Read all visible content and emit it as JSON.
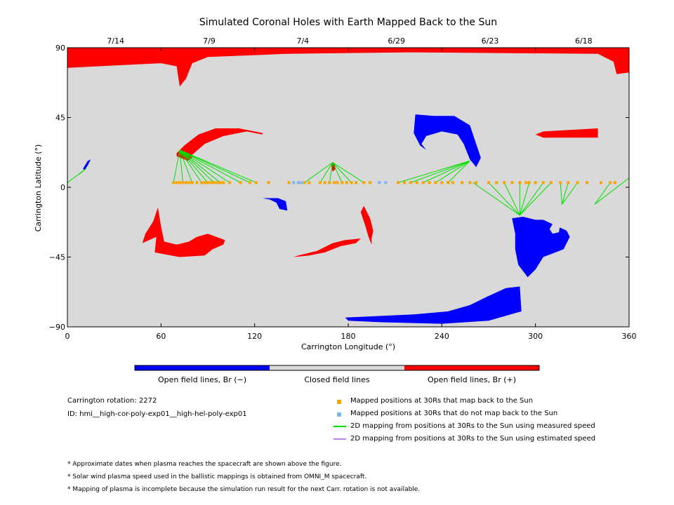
{
  "chart_data": {
    "type": "map",
    "title": "Simulated Coronal Holes with Earth Mapped Back to the Sun",
    "xlabel": "Carrington Longitude (°)",
    "ylabel": "Carrington Latitude (°)",
    "xlim": [
      0,
      360
    ],
    "ylim": [
      -90,
      90
    ],
    "x_ticks": [
      0,
      60,
      120,
      180,
      240,
      300,
      360
    ],
    "y_ticks": [
      -90,
      -45,
      0,
      45,
      90
    ],
    "x_tick_labels": [
      "0",
      "60",
      "120",
      "180",
      "240",
      "300",
      "360"
    ],
    "y_tick_labels": [
      "−90",
      "−45",
      "0",
      "45",
      "90"
    ],
    "top_axis_dates": [
      {
        "label": "7/14",
        "lon": 30
      },
      {
        "label": "7/9",
        "lon": 90
      },
      {
        "label": "7/4",
        "lon": 150
      },
      {
        "label": "6/29",
        "lon": 210
      },
      {
        "label": "6/23",
        "lon": 270
      },
      {
        "label": "6/18",
        "lon": 330
      }
    ],
    "colors": {
      "closed": "#d9d9d9",
      "open_negative": "#0000ff",
      "open_positive": "#ff0000",
      "mapped": "#f5a500",
      "unmapped": "#7ab8f5",
      "measured": "#00e000",
      "estimated": "#c080f0"
    },
    "coronal_holes": [
      {
        "polarity": "positive",
        "points": [
          [
            0,
            90
          ],
          [
            360,
            90
          ],
          [
            360,
            74
          ],
          [
            352,
            73
          ],
          [
            350,
            81
          ],
          [
            340,
            86
          ],
          [
            220,
            87
          ],
          [
            140,
            86
          ],
          [
            90,
            84
          ],
          [
            80,
            80
          ],
          [
            76,
            70
          ],
          [
            72,
            65
          ],
          [
            70,
            78
          ],
          [
            60,
            80
          ],
          [
            0,
            77
          ]
        ]
      },
      {
        "polarity": "positive",
        "points": [
          [
            70,
            22
          ],
          [
            75,
            27
          ],
          [
            84,
            34
          ],
          [
            95,
            38
          ],
          [
            110,
            38
          ],
          [
            125,
            35
          ],
          [
            125,
            34
          ],
          [
            115,
            36
          ],
          [
            100,
            33
          ],
          [
            88,
            28
          ],
          [
            80,
            21
          ],
          [
            75,
            18
          ],
          [
            70,
            20
          ]
        ]
      },
      {
        "polarity": "positive",
        "points": [
          [
            76,
            26
          ],
          [
            78,
            24
          ],
          [
            80,
            19
          ],
          [
            77,
            17
          ],
          [
            73,
            19
          ]
        ]
      },
      {
        "polarity": "positive",
        "points": [
          [
            305,
            36
          ],
          [
            340,
            38
          ],
          [
            340,
            32
          ],
          [
            305,
            32
          ],
          [
            300,
            34
          ]
        ]
      },
      {
        "polarity": "positive",
        "points": [
          [
            48,
            -36
          ],
          [
            57,
            -32
          ],
          [
            56,
            -42
          ],
          [
            72,
            -45
          ],
          [
            88,
            -44
          ],
          [
            93,
            -40
          ],
          [
            100,
            -37
          ],
          [
            101,
            -34
          ],
          [
            90,
            -30
          ],
          [
            83,
            -32
          ],
          [
            78,
            -35
          ],
          [
            70,
            -37
          ],
          [
            62,
            -35
          ],
          [
            60,
            -25
          ],
          [
            58,
            -13
          ],
          [
            55,
            -22
          ],
          [
            50,
            -30
          ]
        ]
      },
      {
        "polarity": "positive",
        "points": [
          [
            145,
            -45
          ],
          [
            155,
            -44
          ],
          [
            165,
            -42
          ],
          [
            175,
            -38
          ],
          [
            185,
            -36
          ],
          [
            188,
            -33
          ],
          [
            178,
            -34
          ],
          [
            170,
            -36
          ],
          [
            160,
            -41
          ],
          [
            148,
            -44
          ]
        ]
      },
      {
        "polarity": "positive",
        "points": [
          [
            195,
            -37
          ],
          [
            193,
            -32
          ],
          [
            191,
            -25
          ],
          [
            188,
            -16
          ],
          [
            190,
            -12
          ],
          [
            194,
            -20
          ],
          [
            196,
            -28
          ],
          [
            195,
            -33
          ]
        ]
      },
      {
        "polarity": "positive",
        "points": [
          [
            169,
            14
          ],
          [
            171,
            16
          ],
          [
            172,
            12
          ],
          [
            170,
            10
          ]
        ]
      },
      {
        "polarity": "negative",
        "points": [
          [
            223,
            47
          ],
          [
            235,
            46
          ],
          [
            248,
            46
          ],
          [
            258,
            40
          ],
          [
            262,
            28
          ],
          [
            265,
            19
          ],
          [
            262,
            13
          ],
          [
            258,
            18
          ],
          [
            254,
            28
          ],
          [
            250,
            34
          ],
          [
            240,
            36
          ],
          [
            230,
            33
          ],
          [
            227,
            28
          ],
          [
            230,
            24
          ],
          [
            226,
            27
          ],
          [
            222,
            35
          ]
        ]
      },
      {
        "polarity": "negative",
        "points": [
          [
            10,
            12
          ],
          [
            13,
            17
          ],
          [
            15,
            18
          ],
          [
            13,
            14
          ],
          [
            11,
            11
          ]
        ]
      },
      {
        "polarity": "negative",
        "points": [
          [
            125,
            -7
          ],
          [
            130,
            -8
          ],
          [
            134,
            -10
          ],
          [
            136,
            -14
          ],
          [
            141,
            -15
          ],
          [
            140,
            -9
          ],
          [
            135,
            -7
          ],
          [
            131,
            -7
          ]
        ]
      },
      {
        "polarity": "negative",
        "points": [
          [
            285,
            -20
          ],
          [
            292,
            -19
          ],
          [
            300,
            -21
          ],
          [
            305,
            -21
          ],
          [
            320,
            -28
          ],
          [
            322,
            -32
          ],
          [
            318,
            -40
          ],
          [
            305,
            -45
          ],
          [
            300,
            -53
          ],
          [
            295,
            -58
          ],
          [
            289,
            -50
          ],
          [
            287,
            -40
          ],
          [
            287,
            -30
          ]
        ]
      },
      {
        "polarity": "negative",
        "points": [
          [
            178,
            -84
          ],
          [
            200,
            -83
          ],
          [
            222,
            -82
          ],
          [
            244,
            -80
          ],
          [
            258,
            -76
          ],
          [
            268,
            -71
          ],
          [
            281,
            -65
          ],
          [
            290,
            -64
          ],
          [
            291,
            -80
          ],
          [
            270,
            -86
          ],
          [
            240,
            -88
          ],
          [
            200,
            -87
          ],
          [
            180,
            -86
          ]
        ]
      }
    ],
    "holes_closed": [
      {
        "points": [
          [
            309,
            -27
          ],
          [
            312,
            -22
          ],
          [
            316,
            -24
          ],
          [
            315,
            -29
          ],
          [
            311,
            -30
          ]
        ]
      }
    ],
    "mapped_points_lon": [
      68,
      70,
      72,
      74,
      76,
      78,
      80,
      83,
      86,
      88,
      90,
      92,
      94,
      96,
      98,
      100,
      104,
      111,
      117,
      121,
      129,
      142,
      148,
      152,
      155,
      162,
      165,
      168,
      171,
      173,
      176,
      179,
      182,
      185,
      190,
      194,
      212,
      216,
      220,
      224,
      228,
      232,
      236,
      240,
      244,
      247,
      253,
      258,
      262,
      270,
      275,
      280,
      285,
      290,
      294,
      296,
      300,
      305,
      310,
      316,
      321,
      327,
      333,
      342,
      348,
      351
    ],
    "unmapped_points_lon": [
      145,
      148,
      150,
      200,
      204
    ],
    "mapped_lat": 3,
    "measured_mappings": [
      {
        "from": [
          [
            68,
            3
          ],
          [
            74,
            3
          ],
          [
            80,
            3
          ],
          [
            86,
            3
          ],
          [
            90,
            3
          ],
          [
            94,
            3
          ],
          [
            98,
            3
          ],
          [
            104,
            3
          ],
          [
            111,
            3
          ],
          [
            117,
            3
          ],
          [
            121,
            3
          ]
        ],
        "to": [
          72,
          24
        ]
      },
      {
        "from": [
          [
            152,
            3
          ],
          [
            162,
            3
          ],
          [
            168,
            3
          ],
          [
            176,
            3
          ],
          [
            182,
            3
          ],
          [
            190,
            3
          ]
        ],
        "to": [
          170,
          16
        ]
      },
      {
        "from": [
          [
            212,
            3
          ],
          [
            220,
            3
          ],
          [
            228,
            3
          ],
          [
            236,
            3
          ],
          [
            244,
            3
          ]
        ],
        "to": [
          258,
          17
        ]
      },
      {
        "from": [
          [
            260,
            3
          ],
          [
            270,
            3
          ],
          [
            280,
            3
          ],
          [
            290,
            3
          ],
          [
            296,
            3
          ],
          [
            305,
            3
          ],
          [
            310,
            3
          ]
        ],
        "to": [
          290,
          -18
        ]
      },
      {
        "from": [
          [
            316,
            3
          ],
          [
            321,
            3
          ],
          [
            327,
            3
          ]
        ],
        "to": [
          317,
          -11
        ]
      },
      {
        "from": [
          [
            0,
            3
          ],
          [
            7,
            8
          ]
        ],
        "to": [
          12,
          12
        ]
      },
      {
        "from": [
          [
            348,
            3
          ],
          [
            360,
            6
          ]
        ],
        "to": [
          338,
          -11
        ]
      }
    ],
    "colorbar": [
      {
        "label": "Open field lines, Br (−)",
        "color": "#0000ff"
      },
      {
        "label": "Closed field lines",
        "color": "#d9d9d9"
      },
      {
        "label": "Open field lines, Br (+)",
        "color": "#ff0000"
      }
    ]
  },
  "info": {
    "rotation": "Carrington rotation: 2272",
    "id": "ID: hmi__high-cor-poly-exp01__high-hel-poly-exp01"
  },
  "legend": [
    {
      "label": "Mapped positions at 30Rs that map back to the Sun",
      "kind": "square",
      "color": "#f5a500"
    },
    {
      "label": "Mapped positions at 30Rs that do not map back to the Sun",
      "kind": "square",
      "color": "#7ab8f5"
    },
    {
      "label": "2D mapping from positions at 30Rs to the Sun using measured speed",
      "kind": "line",
      "color": "#00e000"
    },
    {
      "label": "2D mapping from positions at 30Rs to the Sun using estimated speed",
      "kind": "line",
      "color": "#c080f0"
    }
  ],
  "notes": [
    "* Approximate dates when plasma reaches the spacecraft are shown above the figure.",
    "* Solar wind plasma speed used in the ballistic mappings is obtained from OMNI_M spacecraft.",
    "* Mapping of plasma is incomplete because the simulation run result for the next Carr. rotation is not available."
  ]
}
